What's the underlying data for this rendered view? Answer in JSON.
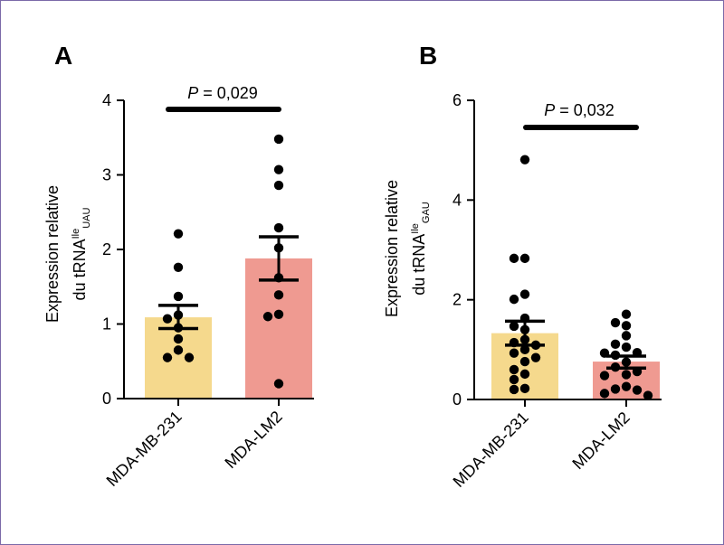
{
  "colors": {
    "bar1": "#f5d98d",
    "bar2": "#ef9a91",
    "axis": "#000000",
    "border": "#7b6aa8"
  },
  "chart_data": [
    {
      "panel": "A",
      "type": "bar",
      "categories": [
        "MDA-MB-231",
        "MDA-LM2"
      ],
      "values": [
        1.09,
        1.88
      ],
      "error_low": [
        0.94,
        1.59
      ],
      "error_high": [
        1.25,
        2.17
      ],
      "points": [
        [
          2.21,
          1.76,
          1.37,
          1.12,
          1.07,
          0.95,
          0.8,
          0.65,
          0.55,
          0.55
        ],
        [
          3.48,
          3.07,
          2.86,
          2.29,
          2.02,
          1.62,
          1.39,
          1.13,
          1.1,
          0.2
        ]
      ],
      "ylim": [
        0,
        4
      ],
      "yticks": [
        "0",
        "1",
        "2",
        "3",
        "4"
      ],
      "ylabel_line1": "Expression relative",
      "ylabel_line2": "du tRNA",
      "ylabel_sup": "Ile",
      "ylabel_sub": "UAU",
      "pvalue_prefix": "P",
      "pvalue_text": " = 0,029"
    },
    {
      "panel": "B",
      "type": "bar",
      "categories": [
        "MDA-MB-231",
        "MDA-LM2"
      ],
      "values": [
        1.33,
        0.76
      ],
      "error_low": [
        1.09,
        0.63
      ],
      "error_high": [
        1.57,
        0.87
      ],
      "points": [
        [
          4.81,
          2.83,
          2.83,
          2.11,
          2.01,
          1.63,
          1.47,
          1.4,
          1.2,
          1.14,
          1.09,
          1.0,
          0.93,
          0.84,
          0.76,
          0.6,
          0.51,
          0.4,
          0.22,
          0.2
        ],
        [
          1.71,
          1.54,
          1.48,
          1.28,
          1.11,
          1.05,
          0.94,
          0.93,
          0.89,
          0.75,
          0.65,
          0.56,
          0.5,
          0.48,
          0.26,
          0.21,
          0.19,
          0.12,
          0.08
        ]
      ],
      "ylim": [
        0,
        6
      ],
      "yticks": [
        "0",
        "2",
        "4",
        "6"
      ],
      "ylabel_line1": "Expression relative",
      "ylabel_line2": "du tRNA",
      "ylabel_sup": "Ile",
      "ylabel_sub": "GAU",
      "pvalue_prefix": "P",
      "pvalue_text": " = 0,032"
    }
  ]
}
